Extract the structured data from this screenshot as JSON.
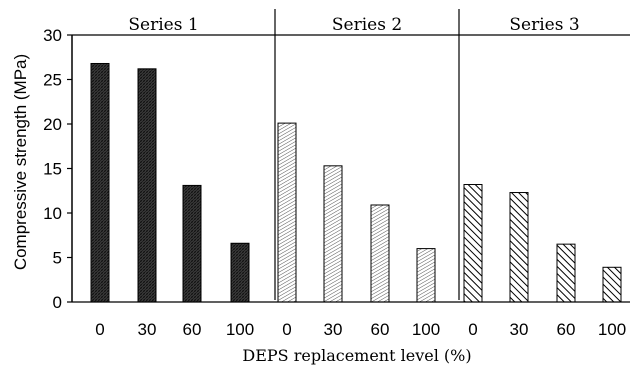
{
  "chart_data": {
    "type": "bar",
    "ylabel": "Compressive strength (MPa)",
    "xlabel": "DEPS replacement level (%)",
    "ylim": [
      0,
      30
    ],
    "yticks": [
      0,
      5,
      10,
      15,
      20,
      25,
      30
    ],
    "categories": [
      "0",
      "30",
      "60",
      "100"
    ],
    "grid": false,
    "series": [
      {
        "name": "Series 1",
        "values": [
          26.8,
          26.2,
          13.1,
          6.6
        ],
        "pattern": "dark-crosshatch"
      },
      {
        "name": "Series 2",
        "values": [
          20.1,
          15.3,
          10.9,
          6.0
        ],
        "pattern": "light-diagonal"
      },
      {
        "name": "Series 3",
        "values": [
          13.2,
          12.3,
          6.5,
          3.9
        ],
        "pattern": "bold-diagonal"
      }
    ]
  }
}
